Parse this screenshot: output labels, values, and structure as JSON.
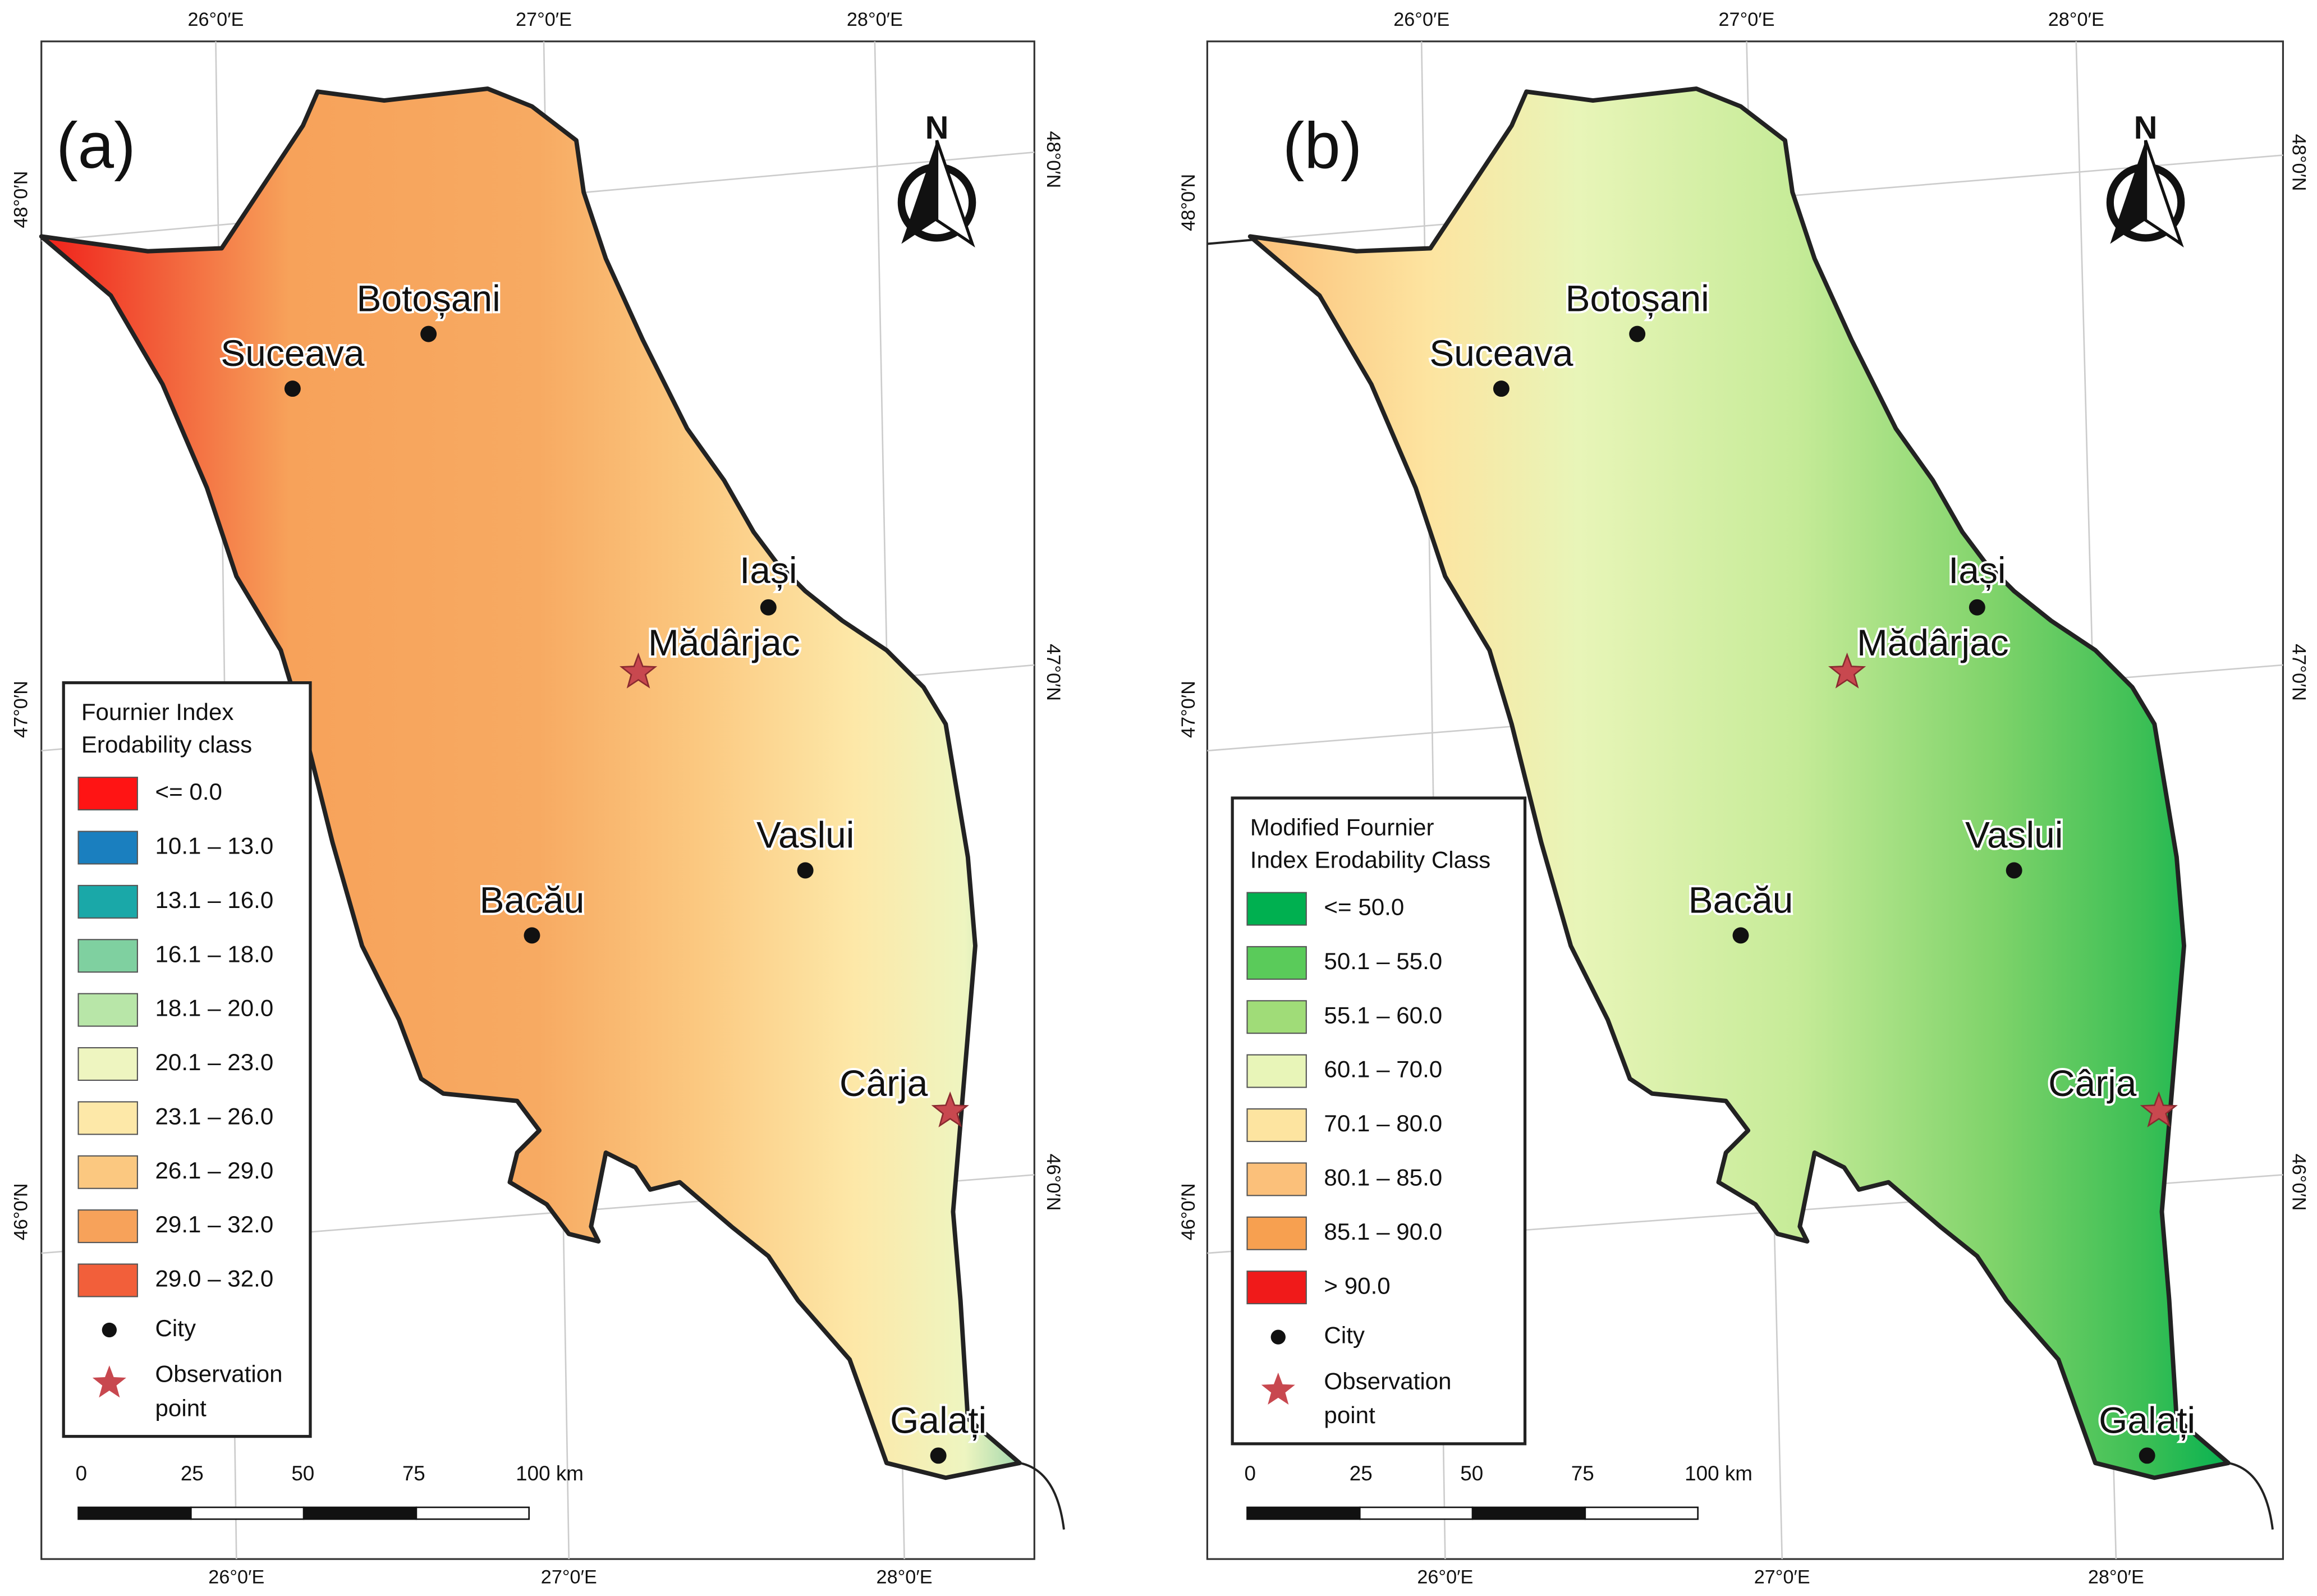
{
  "panels": [
    {
      "label": "(a)",
      "north": "N",
      "top_labels": [
        "26°0′E",
        "27°0′E",
        "28°0′E"
      ],
      "bottom_labels": [
        "26°0′E",
        "27°0′E",
        "28°0′E"
      ],
      "left_labels": [
        "48°0′N",
        "47°0′N",
        "46°0′N"
      ],
      "right_labels": [
        "48°0′N",
        "47°0′N",
        "46°0′N"
      ],
      "cities": [
        "Botoșani",
        "Suceava",
        "Iași",
        "Vaslui",
        "Bacău",
        "Galați"
      ],
      "observation_points": [
        "Mădârjac",
        "Cârja"
      ],
      "legend": {
        "title": [
          "Fournier Index",
          "Erodability class"
        ],
        "items": [
          {
            "label": "<= 0.0",
            "color": "#ff1414"
          },
          {
            "label": "10.1 – 13.0",
            "color": "#1a7fbf"
          },
          {
            "label": "13.1 – 16.0",
            "color": "#1aa8a8"
          },
          {
            "label": "16.1 – 18.0",
            "color": "#7fd0a0"
          },
          {
            "label": "18.1 – 20.0",
            "color": "#b8e6a8"
          },
          {
            "label": "20.1 – 23.0",
            "color": "#eef5c0"
          },
          {
            "label": "23.1 – 26.0",
            "color": "#fde8a8"
          },
          {
            "label": "26.1 – 29.0",
            "color": "#fbc880"
          },
          {
            "label": "29.1 – 32.0",
            "color": "#f7a25a"
          },
          {
            "label": "29.0 – 32.0",
            "color": "#f25f3a"
          }
        ],
        "city": "City",
        "observation": [
          "Observation",
          "point"
        ]
      },
      "scale_labels": [
        "0",
        "25",
        "50",
        "75",
        "100 km"
      ]
    },
    {
      "label": "(b)",
      "north": "N",
      "top_labels": [
        "26°0′E",
        "27°0′E",
        "28°0′E"
      ],
      "bottom_labels": [
        "26°0′E",
        "27°0′E",
        "28°0′E"
      ],
      "left_labels": [
        "48°0′N",
        "47°0′N",
        "46°0′N"
      ],
      "right_labels": [
        "48°0′N",
        "47°0′N",
        "46°0′N"
      ],
      "cities": [
        "Botoșani",
        "Suceava",
        "Iași",
        "Vaslui",
        "Bacău",
        "Galați"
      ],
      "observation_points": [
        "Mădârjac",
        "Cârja"
      ],
      "legend": {
        "title": [
          "Modified Fournier",
          "Index Erodability Class"
        ],
        "items": [
          {
            "label": "<= 50.0",
            "color": "#00b050"
          },
          {
            "label": "50.1 – 55.0",
            "color": "#5acb5a"
          },
          {
            "label": "55.1 – 60.0",
            "color": "#a0dc78"
          },
          {
            "label": "60.1 – 70.0",
            "color": "#e8f5b8"
          },
          {
            "label": "70.1 – 80.0",
            "color": "#fde4a0"
          },
          {
            "label": "80.1 – 85.0",
            "color": "#fbc07a"
          },
          {
            "label": "85.1 – 90.0",
            "color": "#f7a050"
          },
          {
            "label": "> 90.0",
            "color": "#f01a1a"
          }
        ],
        "city": "City",
        "observation": [
          "Observation",
          "point"
        ]
      },
      "scale_labels": [
        "0",
        "25",
        "50",
        "75",
        "100 km"
      ]
    }
  ]
}
